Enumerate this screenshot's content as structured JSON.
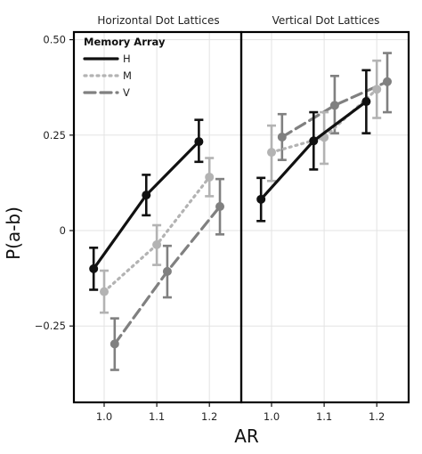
{
  "chart_data": {
    "type": "line",
    "xlabel": "AR",
    "ylabel": "P(a-b)",
    "ylim": [
      -0.45,
      0.52
    ],
    "x_ticks": [
      {
        "value": 1.0,
        "label": "1.0"
      },
      {
        "value": 1.1,
        "label": "1.1"
      },
      {
        "value": 1.2,
        "label": "1.2"
      }
    ],
    "y_ticks": [
      {
        "value": 0.5,
        "label": "0.50"
      },
      {
        "value": 0.25,
        "label": "0.25"
      },
      {
        "value": 0,
        "label": "0"
      },
      {
        "value": -0.25,
        "label": "−0.25"
      }
    ],
    "legend": {
      "title": "Memory Array",
      "position": "top-left",
      "entries": [
        "H",
        "M",
        "V"
      ]
    },
    "series_styles": {
      "H": {
        "color": "#111111",
        "dash": "",
        "offset": -0.02
      },
      "M": {
        "color": "#b3b3b3",
        "dash": "2 5",
        "offset": 0.0
      },
      "V": {
        "color": "#808080",
        "dash": "12 6",
        "offset": 0.02
      }
    },
    "panels": [
      {
        "title": "Horizontal Dot Lattices",
        "series": [
          {
            "name": "H",
            "x": [
              1.0,
              1.1,
              1.2
            ],
            "y": [
              -0.1,
              0.093,
              0.233
            ],
            "lower": [
              -0.155,
              0.04,
              0.18
            ],
            "upper": [
              -0.045,
              0.146,
              0.29
            ]
          },
          {
            "name": "M",
            "x": [
              1.0,
              1.1,
              1.2
            ],
            "y": [
              -0.16,
              -0.037,
              0.14
            ],
            "lower": [
              -0.215,
              -0.09,
              0.09
            ],
            "upper": [
              -0.105,
              0.014,
              0.19
            ]
          },
          {
            "name": "V",
            "x": [
              1.0,
              1.1,
              1.2
            ],
            "y": [
              -0.297,
              -0.107,
              0.063
            ],
            "lower": [
              -0.365,
              -0.175,
              -0.01
            ],
            "upper": [
              -0.23,
              -0.04,
              0.135
            ]
          }
        ]
      },
      {
        "title": "Vertical Dot Lattices",
        "series": [
          {
            "name": "H",
            "x": [
              1.0,
              1.1,
              1.2
            ],
            "y": [
              0.082,
              0.235,
              0.338
            ],
            "lower": [
              0.025,
              0.16,
              0.255
            ],
            "upper": [
              0.138,
              0.31,
              0.42
            ]
          },
          {
            "name": "M",
            "x": [
              1.0,
              1.1,
              1.2
            ],
            "y": [
              0.205,
              0.244,
              0.37
            ],
            "lower": [
              0.13,
              0.175,
              0.295
            ],
            "upper": [
              0.275,
              0.31,
              0.445
            ]
          },
          {
            "name": "V",
            "x": [
              1.0,
              1.1,
              1.2
            ],
            "y": [
              0.245,
              0.328,
              0.39
            ],
            "lower": [
              0.185,
              0.255,
              0.31
            ],
            "upper": [
              0.305,
              0.405,
              0.465
            ]
          }
        ]
      }
    ]
  }
}
